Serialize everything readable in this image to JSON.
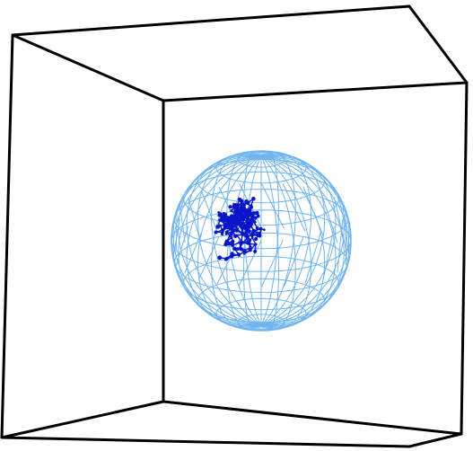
{
  "scene": {
    "background": "#ffffff",
    "box_color": "#000000",
    "sphere_color": "#6fb4ef",
    "molecule_color": "#0a14c8"
  }
}
